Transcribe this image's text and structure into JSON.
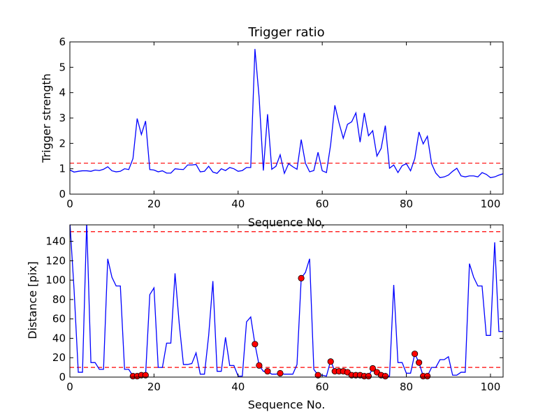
{
  "chart_data": [
    {
      "type": "line",
      "title": "Trigger ratio",
      "xlabel": "Sequence No.",
      "ylabel": "Trigger strength",
      "xlim": [
        0,
        103
      ],
      "ylim": [
        0,
        6
      ],
      "xticks": [
        0,
        20,
        40,
        60,
        80,
        100
      ],
      "yticks": [
        0,
        1,
        2,
        3,
        4,
        5,
        6
      ],
      "series": [
        {
          "color": "#0000ff",
          "x": [
            0,
            1,
            2,
            3,
            4,
            5,
            6,
            7,
            8,
            9,
            10,
            11,
            12,
            13,
            14,
            15,
            16,
            17,
            18,
            19,
            20,
            21,
            22,
            23,
            24,
            25,
            26,
            27,
            28,
            29,
            30,
            31,
            32,
            33,
            34,
            35,
            36,
            37,
            38,
            39,
            40,
            41,
            42,
            43,
            44,
            45,
            46,
            47,
            48,
            49,
            50,
            51,
            52,
            53,
            54,
            55,
            56,
            57,
            58,
            59,
            60,
            61,
            62,
            63,
            64,
            65,
            66,
            67,
            68,
            69,
            70,
            71,
            72,
            73,
            74,
            75,
            76,
            77,
            78,
            79,
            80,
            81,
            82,
            83,
            84,
            85,
            86,
            87,
            88,
            89,
            90,
            91,
            92,
            93,
            94,
            95,
            96,
            97,
            98,
            99,
            100,
            101,
            102,
            103
          ],
          "y": [
            0.95,
            0.87,
            0.9,
            0.92,
            0.92,
            0.9,
            0.95,
            0.93,
            0.98,
            1.08,
            0.92,
            0.88,
            0.9,
            1.0,
            0.97,
            1.4,
            2.98,
            2.35,
            2.88,
            0.97,
            0.95,
            0.88,
            0.92,
            0.83,
            0.83,
            1.0,
            0.98,
            0.97,
            1.15,
            1.15,
            1.17,
            0.88,
            0.9,
            1.1,
            0.87,
            0.82,
            1.0,
            0.93,
            1.05,
            1.0,
            0.9,
            0.93,
            1.05,
            1.05,
            5.72,
            3.8,
            0.93,
            3.15,
            0.98,
            1.1,
            1.55,
            0.82,
            1.2,
            1.08,
            0.98,
            2.15,
            1.22,
            0.88,
            0.93,
            1.65,
            0.92,
            0.85,
            1.95,
            3.5,
            2.8,
            2.2,
            2.75,
            2.85,
            3.2,
            2.05,
            3.2,
            2.3,
            2.5,
            1.5,
            1.8,
            2.7,
            1.02,
            1.15,
            0.85,
            1.12,
            1.2,
            0.92,
            1.4,
            2.45,
            1.98,
            2.28,
            1.2,
            0.83,
            0.65,
            0.68,
            0.75,
            0.9,
            1.02,
            0.72,
            0.68,
            0.72,
            0.72,
            0.68,
            0.85,
            0.78,
            0.65,
            0.68,
            0.75,
            0.8
          ]
        }
      ],
      "reference_lines": [
        {
          "axis": "y",
          "value": 1.22,
          "color": "#ff0000",
          "style": "dashed"
        }
      ]
    },
    {
      "type": "line",
      "title": "",
      "xlabel": "Sequence No.",
      "ylabel": "Distance [pix]",
      "xlim": [
        0,
        103
      ],
      "ylim": [
        0,
        157
      ],
      "xticks": [
        0,
        20,
        40,
        60,
        80,
        100
      ],
      "yticks": [
        0,
        20,
        40,
        60,
        80,
        100,
        120,
        140
      ],
      "series": [
        {
          "color": "#0000ff",
          "x": [
            0,
            1,
            2,
            3,
            4,
            5,
            6,
            7,
            8,
            9,
            10,
            11,
            12,
            13,
            14,
            15,
            16,
            17,
            18,
            19,
            20,
            21,
            22,
            23,
            24,
            25,
            26,
            27,
            28,
            29,
            30,
            31,
            32,
            33,
            34,
            35,
            36,
            37,
            38,
            39,
            40,
            41,
            42,
            43,
            44,
            45,
            46,
            47,
            48,
            49,
            50,
            51,
            52,
            53,
            54,
            55,
            56,
            57,
            58,
            59,
            60,
            61,
            62,
            63,
            64,
            65,
            66,
            67,
            68,
            69,
            70,
            71,
            72,
            73,
            74,
            75,
            76,
            77,
            78,
            79,
            80,
            81,
            82,
            83,
            84,
            85,
            86,
            87,
            88,
            89,
            90,
            91,
            92,
            93,
            94,
            95,
            96,
            97,
            98,
            99,
            100,
            101,
            102,
            103
          ],
          "y": [
            160,
            90,
            5,
            5,
            160,
            15,
            15,
            8,
            8,
            122,
            103,
            94,
            94,
            8,
            8,
            1,
            1,
            2,
            2,
            85,
            92,
            10,
            10,
            35,
            35,
            107,
            55,
            13,
            13,
            14,
            25,
            3,
            3,
            43,
            99,
            6,
            6,
            41,
            12,
            12,
            1,
            1,
            57,
            62,
            34,
            12,
            6,
            6,
            3,
            3,
            4,
            3,
            3,
            3,
            13,
            102,
            108,
            122,
            8,
            2,
            2,
            1,
            17,
            6,
            5,
            5,
            4,
            2,
            2,
            2,
            1,
            1,
            9,
            5,
            2,
            1,
            1,
            95,
            15,
            15,
            4,
            4,
            24,
            15,
            1,
            1,
            10,
            10,
            18,
            18,
            21,
            2,
            2,
            5,
            5,
            117,
            103,
            94,
            94,
            43,
            43,
            139,
            47,
            47
          ],
          "markers": {
            "color": "#ff0000",
            "x": [
              15,
              16,
              17,
              18,
              44,
              45,
              47,
              50,
              55,
              59,
              62,
              63,
              64,
              65,
              66,
              67,
              68,
              69,
              70,
              71,
              72,
              73,
              74,
              75,
              82,
              83,
              84,
              85
            ],
            "y": [
              1,
              1,
              2,
              2,
              34,
              12,
              6,
              4,
              102,
              2,
              16,
              6,
              6,
              6,
              5,
              2,
              2,
              2,
              1,
              1,
              9,
              5,
              2,
              1,
              24,
              15,
              1,
              1
            ]
          }
        }
      ],
      "reference_lines": [
        {
          "axis": "y",
          "value": 150,
          "color": "#ff0000",
          "style": "dashed"
        },
        {
          "axis": "y",
          "value": 10,
          "color": "#ff0000",
          "style": "dashed"
        }
      ]
    }
  ]
}
